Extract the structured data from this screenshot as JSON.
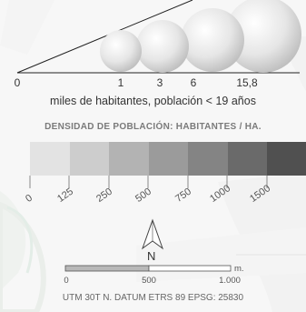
{
  "population_legend": {
    "axis_labels": [
      "0",
      "1",
      "3",
      "6",
      "15,8"
    ],
    "subtitle": "miles de habitantes, población < 19 años"
  },
  "density_legend": {
    "title": "DENSIDAD DE POBLACIÓN: HABITANTES / HA.",
    "colors": [
      "#f7f7f7",
      "#e3e3e3",
      "#cdcdcd",
      "#b3b3b3",
      "#9b9b9b",
      "#848484",
      "#6a6a6a",
      "#505050"
    ],
    "ticks": [
      "0",
      "125",
      "250",
      "500",
      "750",
      "1000",
      "1500"
    ]
  },
  "north_arrow": {
    "label": "N"
  },
  "scale_bar": {
    "labels": [
      "0",
      "500",
      "1.000"
    ],
    "unit": "m."
  },
  "footer": {
    "projection": "UTM 30T N. DATUM ETRS 89 EPSG: 25830"
  }
}
